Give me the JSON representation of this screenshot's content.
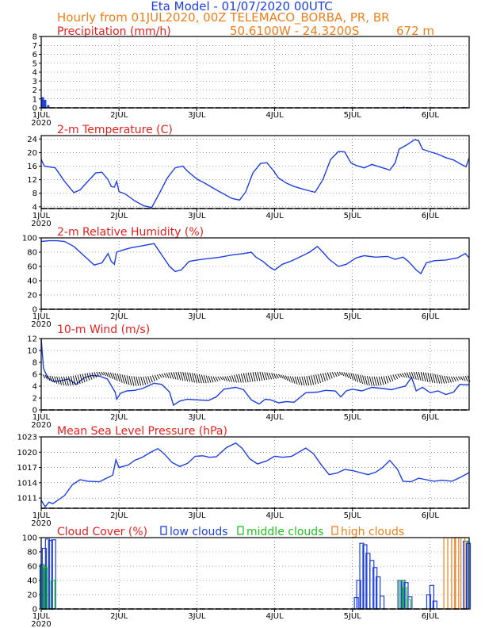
{
  "header": {
    "title": "Eta Model - 01/07/2020 00UTC",
    "subtitle": "Hourly from 01JUL2020, 00Z  TELEMACO_BORBA, PR, BR",
    "coords": "50.6100W - 24.3200S",
    "elevation": "672  m"
  },
  "colors": {
    "title": "#1d3fe0",
    "subtitle": "#f07f1a",
    "panel_title": "#e8201c",
    "series": "#1d3fe0",
    "low_clouds": "#1d3fe0",
    "middle_clouds": "#1ec21e",
    "high_clouds": "#f07f1a"
  },
  "x_axis": {
    "ticks": [
      {
        "day": 0,
        "label": "1JUL",
        "year": "2020"
      },
      {
        "day": 1,
        "label": "2JUL"
      },
      {
        "day": 2,
        "label": "3JUL"
      },
      {
        "day": 3,
        "label": "4JUL"
      },
      {
        "day": 4,
        "label": "5JUL"
      },
      {
        "day": 5,
        "label": "6JUL"
      }
    ],
    "range_days": [
      0,
      5.5
    ]
  },
  "chart_data": [
    {
      "id": "precip",
      "type": "bar",
      "title": "Precipitation (mm/h)",
      "ylim": [
        0,
        8
      ],
      "yticks": [
        0,
        1,
        2,
        3,
        4,
        5,
        6,
        7,
        8
      ],
      "bars": [
        {
          "x": 0.02,
          "value": 1.2
        },
        {
          "x": 0.05,
          "value": 0.9
        },
        {
          "x": 0.09,
          "value": 0.3
        },
        {
          "x": 4.66,
          "value": 0.12
        },
        {
          "x": 4.7,
          "value": 0.1
        },
        {
          "x": 4.74,
          "value": 0.08
        }
      ]
    },
    {
      "id": "temperature",
      "type": "line",
      "title": "2-m Temperature (C)",
      "ylim": [
        3.5,
        25
      ],
      "yticks": [
        4,
        8,
        12,
        16,
        20,
        24
      ],
      "points": [
        [
          0,
          18
        ],
        [
          0.04,
          16
        ],
        [
          0.1,
          15.8
        ],
        [
          0.18,
          15.5
        ],
        [
          0.3,
          11.5
        ],
        [
          0.42,
          8.2
        ],
        [
          0.5,
          9
        ],
        [
          0.58,
          11
        ],
        [
          0.7,
          14
        ],
        [
          0.78,
          14.2
        ],
        [
          0.86,
          12
        ],
        [
          0.9,
          10
        ],
        [
          0.94,
          9.8
        ],
        [
          0.97,
          11.5
        ],
        [
          1.0,
          8.5
        ],
        [
          1.08,
          7.8
        ],
        [
          1.2,
          5.8
        ],
        [
          1.32,
          4.3
        ],
        [
          1.42,
          3.8
        ],
        [
          1.52,
          8
        ],
        [
          1.62,
          12.5
        ],
        [
          1.72,
          15.5
        ],
        [
          1.82,
          16
        ],
        [
          1.88,
          14.5
        ],
        [
          2.0,
          12.2
        ],
        [
          2.1,
          11
        ],
        [
          2.25,
          9
        ],
        [
          2.45,
          6.5
        ],
        [
          2.55,
          6
        ],
        [
          2.63,
          8.5
        ],
        [
          2.72,
          14
        ],
        [
          2.82,
          16.8
        ],
        [
          2.9,
          17
        ],
        [
          2.98,
          14.8
        ],
        [
          3.05,
          12.5
        ],
        [
          3.15,
          11
        ],
        [
          3.25,
          10
        ],
        [
          3.4,
          9
        ],
        [
          3.52,
          8.3
        ],
        [
          3.62,
          12
        ],
        [
          3.72,
          18
        ],
        [
          3.82,
          20.3
        ],
        [
          3.9,
          20.2
        ],
        [
          3.98,
          17
        ],
        [
          4.05,
          16.2
        ],
        [
          4.15,
          15.5
        ],
        [
          4.25,
          16.5
        ],
        [
          4.35,
          15.8
        ],
        [
          4.48,
          14.8
        ],
        [
          4.55,
          17
        ],
        [
          4.6,
          21
        ],
        [
          4.7,
          22.3
        ],
        [
          4.8,
          23.8
        ],
        [
          4.85,
          23.5
        ],
        [
          4.9,
          21
        ],
        [
          5.0,
          20.2
        ],
        [
          5.1,
          19.5
        ],
        [
          5.2,
          18.5
        ],
        [
          5.3,
          17.8
        ],
        [
          5.4,
          16.5
        ],
        [
          5.46,
          15.8
        ],
        [
          5.5,
          18.5
        ]
      ]
    },
    {
      "id": "humidity",
      "type": "line",
      "title": "2-m Relative Humidity (%)",
      "ylim": [
        0,
        100
      ],
      "yticks": [
        0,
        20,
        40,
        60,
        80,
        100
      ],
      "points": [
        [
          0,
          95
        ],
        [
          0.1,
          96
        ],
        [
          0.2,
          96
        ],
        [
          0.3,
          95
        ],
        [
          0.42,
          88
        ],
        [
          0.55,
          75
        ],
        [
          0.68,
          62
        ],
        [
          0.78,
          65
        ],
        [
          0.86,
          78
        ],
        [
          0.9,
          67
        ],
        [
          0.94,
          63
        ],
        [
          0.97,
          80
        ],
        [
          1.05,
          83
        ],
        [
          1.15,
          86
        ],
        [
          1.3,
          89
        ],
        [
          1.45,
          92
        ],
        [
          1.55,
          76
        ],
        [
          1.65,
          60
        ],
        [
          1.72,
          53
        ],
        [
          1.8,
          55
        ],
        [
          1.9,
          67
        ],
        [
          2.0,
          69
        ],
        [
          2.15,
          71
        ],
        [
          2.3,
          73
        ],
        [
          2.45,
          76
        ],
        [
          2.6,
          78
        ],
        [
          2.7,
          80
        ],
        [
          2.76,
          73
        ],
        [
          2.85,
          67
        ],
        [
          2.95,
          58
        ],
        [
          3.0,
          55
        ],
        [
          3.1,
          63
        ],
        [
          3.2,
          67
        ],
        [
          3.3,
          72
        ],
        [
          3.45,
          80
        ],
        [
          3.55,
          88
        ],
        [
          3.62,
          80
        ],
        [
          3.7,
          70
        ],
        [
          3.82,
          60
        ],
        [
          3.92,
          63
        ],
        [
          4.05,
          72
        ],
        [
          4.15,
          75
        ],
        [
          4.3,
          73
        ],
        [
          4.45,
          74
        ],
        [
          4.55,
          70
        ],
        [
          4.65,
          73
        ],
        [
          4.72,
          67
        ],
        [
          4.82,
          55
        ],
        [
          4.88,
          50
        ],
        [
          4.95,
          65
        ],
        [
          5.05,
          68
        ],
        [
          5.2,
          69
        ],
        [
          5.35,
          72
        ],
        [
          5.45,
          78
        ],
        [
          5.5,
          72
        ]
      ]
    },
    {
      "id": "wind",
      "type": "line",
      "title": "10-m Wind (m/s)",
      "ylim": [
        0,
        12
      ],
      "yticks": [
        0,
        2,
        4,
        6,
        8,
        10,
        12
      ],
      "points": [
        [
          0,
          12
        ],
        [
          0.03,
          7
        ],
        [
          0.08,
          5.5
        ],
        [
          0.15,
          4.8
        ],
        [
          0.25,
          4.9
        ],
        [
          0.35,
          5.2
        ],
        [
          0.45,
          4.3
        ],
        [
          0.55,
          5.4
        ],
        [
          0.65,
          5.8
        ],
        [
          0.75,
          5.7
        ],
        [
          0.85,
          5.2
        ],
        [
          0.95,
          3
        ],
        [
          0.97,
          1.8
        ],
        [
          1.02,
          2.8
        ],
        [
          1.1,
          3.2
        ],
        [
          1.2,
          3.3
        ],
        [
          1.3,
          3.6
        ],
        [
          1.45,
          4.5
        ],
        [
          1.55,
          4.3
        ],
        [
          1.65,
          3
        ],
        [
          1.7,
          0.8
        ],
        [
          1.78,
          1.5
        ],
        [
          1.88,
          1.8
        ],
        [
          2.0,
          1.7
        ],
        [
          2.15,
          1.6
        ],
        [
          2.25,
          2.2
        ],
        [
          2.35,
          3.5
        ],
        [
          2.5,
          3.8
        ],
        [
          2.6,
          3.4
        ],
        [
          2.7,
          1.7
        ],
        [
          2.8,
          1
        ],
        [
          2.88,
          1.8
        ],
        [
          2.95,
          1.7
        ],
        [
          3.05,
          1.2
        ],
        [
          3.15,
          1.4
        ],
        [
          3.25,
          1.3
        ],
        [
          3.4,
          2.9
        ],
        [
          3.55,
          3
        ],
        [
          3.65,
          3.3
        ],
        [
          3.78,
          3.2
        ],
        [
          3.85,
          2.2
        ],
        [
          3.92,
          3.2
        ],
        [
          4.0,
          3.5
        ],
        [
          4.12,
          3.2
        ],
        [
          4.25,
          3.8
        ],
        [
          4.4,
          3.6
        ],
        [
          4.5,
          3.4
        ],
        [
          4.58,
          3.7
        ],
        [
          4.68,
          4
        ],
        [
          4.76,
          5.5
        ],
        [
          4.82,
          3.2
        ],
        [
          4.9,
          3.8
        ],
        [
          5.0,
          2.9
        ],
        [
          5.1,
          3.2
        ],
        [
          5.2,
          2.6
        ],
        [
          5.3,
          3
        ],
        [
          5.38,
          4.3
        ],
        [
          5.5,
          4.2
        ]
      ]
    },
    {
      "id": "pressure",
      "type": "line",
      "title": "Mean Sea Level Pressure (hPa)",
      "ylim": [
        1009,
        1023
      ],
      "yticks": [
        1011,
        1014,
        1017,
        1020,
        1023
      ],
      "points": [
        [
          0,
          1010.6
        ],
        [
          0.05,
          1009.3
        ],
        [
          0.1,
          1010.2
        ],
        [
          0.15,
          1009.9
        ],
        [
          0.3,
          1011.5
        ],
        [
          0.4,
          1013.6
        ],
        [
          0.5,
          1014.6
        ],
        [
          0.6,
          1014.3
        ],
        [
          0.75,
          1014.2
        ],
        [
          0.8,
          1014.6
        ],
        [
          0.88,
          1015.2
        ],
        [
          0.92,
          1015.5
        ],
        [
          0.96,
          1018.5
        ],
        [
          1.0,
          1017
        ],
        [
          1.12,
          1017.5
        ],
        [
          1.2,
          1018.4
        ],
        [
          1.3,
          1019
        ],
        [
          1.42,
          1020.1
        ],
        [
          1.5,
          1020.7
        ],
        [
          1.58,
          1019.7
        ],
        [
          1.68,
          1018
        ],
        [
          1.78,
          1017.2
        ],
        [
          1.88,
          1017.8
        ],
        [
          1.98,
          1019.2
        ],
        [
          2.08,
          1019.3
        ],
        [
          2.16,
          1019
        ],
        [
          2.25,
          1019.1
        ],
        [
          2.38,
          1020.9
        ],
        [
          2.5,
          1021.8
        ],
        [
          2.58,
          1020.8
        ],
        [
          2.68,
          1018.7
        ],
        [
          2.78,
          1017.7
        ],
        [
          2.9,
          1018.3
        ],
        [
          3.0,
          1019.2
        ],
        [
          3.1,
          1019
        ],
        [
          3.22,
          1019.2
        ],
        [
          3.3,
          1019.9
        ],
        [
          3.4,
          1020.8
        ],
        [
          3.5,
          1019.7
        ],
        [
          3.6,
          1017.5
        ],
        [
          3.7,
          1015.6
        ],
        [
          3.8,
          1015.9
        ],
        [
          3.9,
          1016.6
        ],
        [
          4.0,
          1016.4
        ],
        [
          4.1,
          1016
        ],
        [
          4.2,
          1015.6
        ],
        [
          4.3,
          1016.1
        ],
        [
          4.38,
          1016.9
        ],
        [
          4.48,
          1018.4
        ],
        [
          4.58,
          1016.6
        ],
        [
          4.65,
          1014.3
        ],
        [
          4.75,
          1014.2
        ],
        [
          4.85,
          1014.9
        ],
        [
          4.95,
          1014.6
        ],
        [
          5.05,
          1014.3
        ],
        [
          5.15,
          1014.5
        ],
        [
          5.28,
          1014.3
        ],
        [
          5.38,
          1015
        ],
        [
          5.5,
          1016
        ]
      ]
    },
    {
      "id": "clouds",
      "type": "bar",
      "title": "Cloud Cover (%)",
      "ylim": [
        0,
        100
      ],
      "yticks": [
        0,
        20,
        40,
        60,
        80,
        100
      ],
      "legend": [
        "low clouds",
        "middle clouds",
        "high clouds"
      ],
      "series": [
        {
          "name": "low clouds",
          "bars": [
            {
              "x": 0.01,
              "value": 62
            },
            {
              "x": 0.04,
              "value": 85
            },
            {
              "x": 0.08,
              "value": 98
            },
            {
              "x": 0.12,
              "value": 96
            },
            {
              "x": 0.16,
              "value": 97
            },
            {
              "x": 4.05,
              "value": 16
            },
            {
              "x": 4.08,
              "value": 40
            },
            {
              "x": 4.12,
              "value": 92
            },
            {
              "x": 4.16,
              "value": 90
            },
            {
              "x": 4.2,
              "value": 78
            },
            {
              "x": 4.25,
              "value": 68
            },
            {
              "x": 4.29,
              "value": 58
            },
            {
              "x": 4.33,
              "value": 45
            },
            {
              "x": 4.38,
              "value": 18
            },
            {
              "x": 4.61,
              "value": 40
            },
            {
              "x": 4.65,
              "value": 40
            },
            {
              "x": 4.69,
              "value": 37
            },
            {
              "x": 4.74,
              "value": 17
            },
            {
              "x": 4.98,
              "value": 20
            },
            {
              "x": 5.02,
              "value": 33
            },
            {
              "x": 5.06,
              "value": 11
            },
            {
              "x": 5.45,
              "value": 95
            },
            {
              "x": 5.49,
              "value": 92
            }
          ]
        },
        {
          "name": "middle clouds",
          "bars": [
            {
              "x": 0.02,
              "value": 60
            },
            {
              "x": 0.05,
              "value": 58
            },
            {
              "x": 0.15,
              "value": 40
            },
            {
              "x": 4.63,
              "value": 40
            },
            {
              "x": 4.67,
              "value": 30
            },
            {
              "x": 4.72,
              "value": 13
            },
            {
              "x": 5.47,
              "value": 95
            }
          ]
        },
        {
          "name": "high clouds",
          "bars": [
            {
              "x": 5.2,
              "value": 100
            },
            {
              "x": 5.3,
              "value": 100
            },
            {
              "x": 5.34,
              "value": 100
            },
            {
              "x": 5.42,
              "value": 100
            }
          ]
        }
      ]
    }
  ]
}
